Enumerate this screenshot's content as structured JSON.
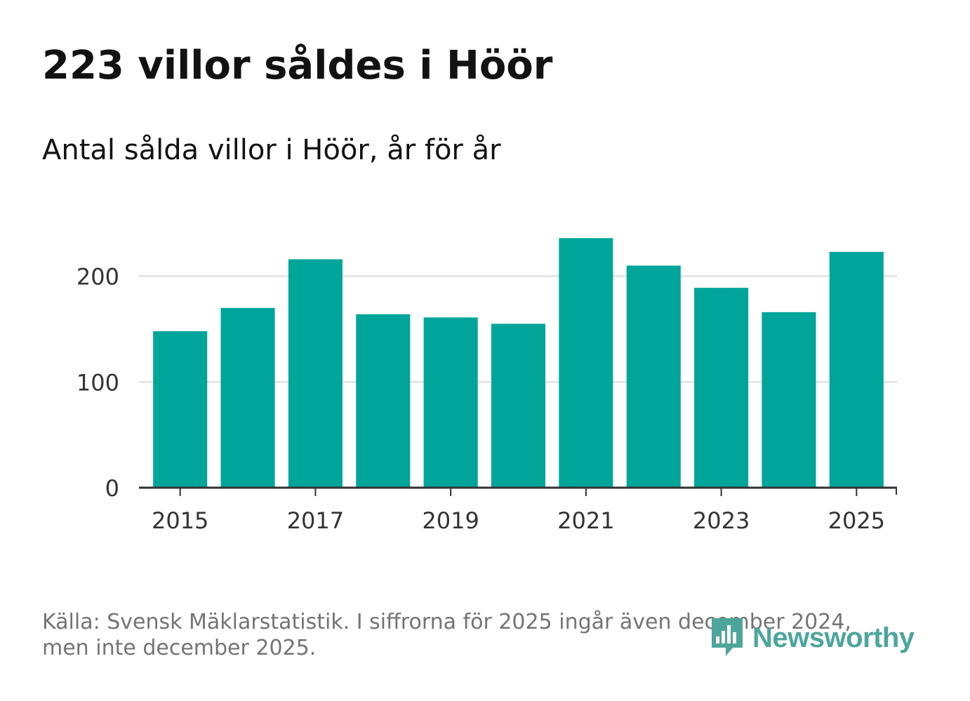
{
  "header": {
    "title": "223 villor såldes i Höör",
    "subtitle": "Antal sålda villor i Höör, år för år"
  },
  "chart_data": {
    "type": "bar",
    "categories": [
      "2015",
      "2016",
      "2017",
      "2018",
      "2019",
      "2020",
      "2021",
      "2022",
      "2023",
      "2024",
      "2025"
    ],
    "values": [
      148,
      170,
      216,
      164,
      161,
      155,
      236,
      210,
      189,
      166,
      223
    ],
    "x_tick_labels": [
      "2015",
      "2017",
      "2019",
      "2021",
      "2023",
      "2025"
    ],
    "y_ticks": [
      0,
      100,
      200
    ],
    "ylim": [
      0,
      250
    ],
    "title": "223 villor såldes i Höör",
    "subtitle": "Antal sålda villor i Höör, år för år",
    "xlabel": "",
    "ylabel": "",
    "grid": true,
    "bar_color": "#00a59a"
  },
  "footer": {
    "source_line1": "Källa: Svensk Mäklarstatistik. I siffrorna för 2025 ingår även december 2024,",
    "source_line2": "men inte december 2025."
  },
  "branding": {
    "logo_text": "Newsworthy",
    "logo_icon": "newsworthy-speech-chart-icon",
    "color": "#4ea59b"
  }
}
